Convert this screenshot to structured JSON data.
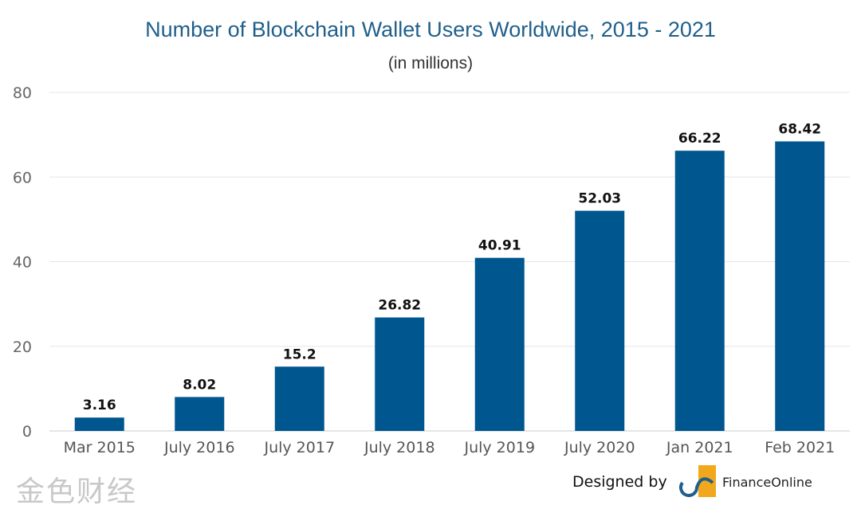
{
  "chart_data": {
    "type": "bar",
    "title": "Number of Blockchain Wallet Users Worldwide, 2015 - 2021",
    "subtitle": "(in millions)",
    "categories": [
      "Mar 2015",
      "July 2016",
      "July 2017",
      "July 2018",
      "July 2019",
      "July 2020",
      "Jan 2021",
      "Feb 2021"
    ],
    "values": [
      3.16,
      8.02,
      15.2,
      26.82,
      40.91,
      52.03,
      66.22,
      68.42
    ],
    "data_labels": [
      "3.16",
      "8.02",
      "15.2",
      "26.82",
      "40.91",
      "52.03",
      "66.22",
      "68.42"
    ],
    "xlabel": "",
    "ylabel": "",
    "ylim": [
      0,
      80
    ],
    "yticks": [
      "0",
      "20",
      "40",
      "60",
      "80"
    ],
    "grid": true,
    "bar_color": "#00568f"
  },
  "credit": {
    "label": "Designed by",
    "logo_text": "FinanceOnline",
    "watermark": "金色财经"
  }
}
